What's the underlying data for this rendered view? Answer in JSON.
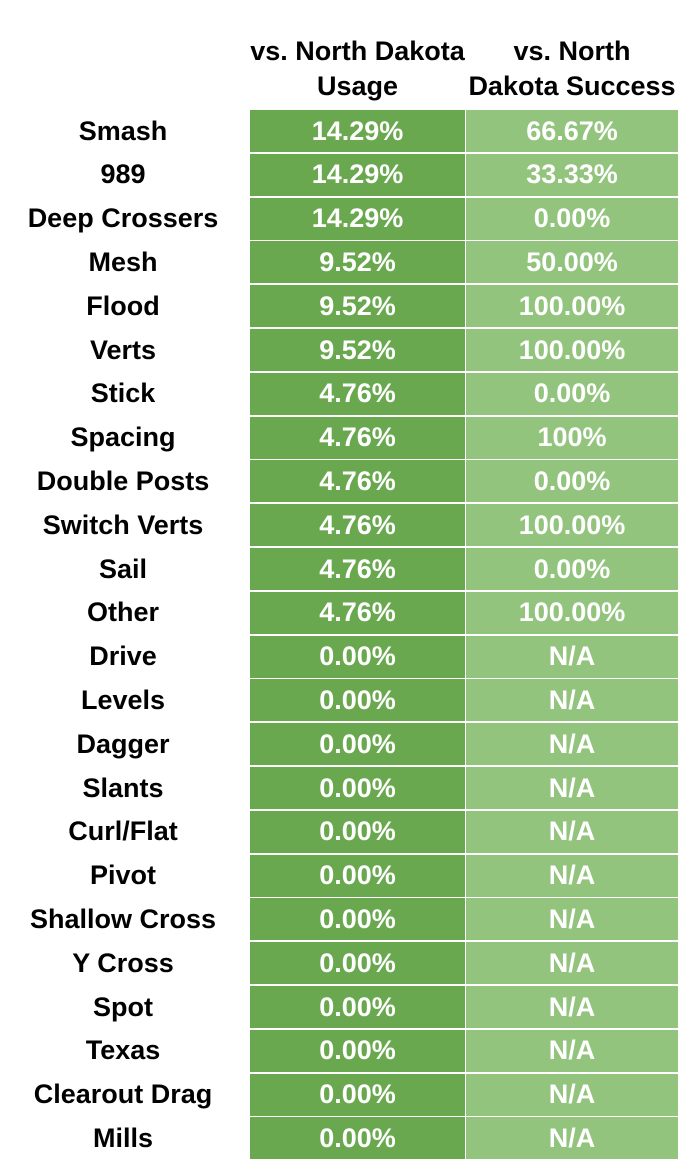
{
  "chart_data": {
    "type": "table",
    "columns": [
      "vs. North Dakota Usage",
      "vs. North Dakota Success"
    ],
    "colors": {
      "usage_cell": "#6aa84f",
      "success_cell": "#93c47d",
      "cell_text": "#ffffff",
      "label_text": "#000000"
    },
    "rows": [
      {
        "label": "Smash",
        "usage": "14.29%",
        "success": "66.67%"
      },
      {
        "label": "989",
        "usage": "14.29%",
        "success": "33.33%"
      },
      {
        "label": "Deep Crossers",
        "usage": "14.29%",
        "success": "0.00%"
      },
      {
        "label": "Mesh",
        "usage": "9.52%",
        "success": "50.00%"
      },
      {
        "label": "Flood",
        "usage": "9.52%",
        "success": "100.00%"
      },
      {
        "label": "Verts",
        "usage": "9.52%",
        "success": "100.00%"
      },
      {
        "label": "Stick",
        "usage": "4.76%",
        "success": "0.00%"
      },
      {
        "label": "Spacing",
        "usage": "4.76%",
        "success": "100%"
      },
      {
        "label": "Double Posts",
        "usage": "4.76%",
        "success": "0.00%"
      },
      {
        "label": "Switch Verts",
        "usage": "4.76%",
        "success": "100.00%"
      },
      {
        "label": "Sail",
        "usage": "4.76%",
        "success": "0.00%"
      },
      {
        "label": "Other",
        "usage": "4.76%",
        "success": "100.00%"
      },
      {
        "label": "Drive",
        "usage": "0.00%",
        "success": "N/A"
      },
      {
        "label": "Levels",
        "usage": "0.00%",
        "success": "N/A"
      },
      {
        "label": "Dagger",
        "usage": "0.00%",
        "success": "N/A"
      },
      {
        "label": "Slants",
        "usage": "0.00%",
        "success": "N/A"
      },
      {
        "label": "Curl/Flat",
        "usage": "0.00%",
        "success": "N/A"
      },
      {
        "label": "Pivot",
        "usage": "0.00%",
        "success": "N/A"
      },
      {
        "label": "Shallow Cross",
        "usage": "0.00%",
        "success": "N/A"
      },
      {
        "label": "Y Cross",
        "usage": "0.00%",
        "success": "N/A"
      },
      {
        "label": "Spot",
        "usage": "0.00%",
        "success": "N/A"
      },
      {
        "label": "Texas",
        "usage": "0.00%",
        "success": "N/A"
      },
      {
        "label": "Clearout Drag",
        "usage": "0.00%",
        "success": "N/A"
      },
      {
        "label": "Mills",
        "usage": "0.00%",
        "success": "N/A"
      }
    ]
  }
}
